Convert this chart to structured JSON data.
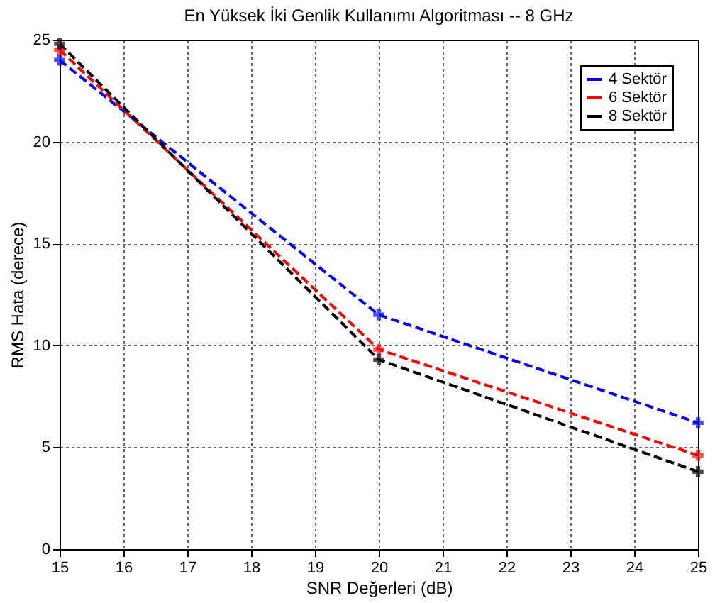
{
  "chart_data": {
    "type": "line",
    "title": "En Yüksek İki Genlik Kullanımı Algoritması -- 8 GHz",
    "xlabel": "SNR Değerleri (dB)",
    "ylabel": "RMS Hata (derece)",
    "x": [
      15,
      20,
      25
    ],
    "series": [
      {
        "name": "4 Sektör",
        "color": "#0000ff",
        "values": [
          24,
          11.5,
          6.2
        ]
      },
      {
        "name": "6 Sektör",
        "color": "#ff0000",
        "values": [
          24.5,
          9.8,
          4.6
        ]
      },
      {
        "name": "8 Sektör",
        "color": "#000000",
        "values": [
          24.8,
          9.3,
          3.8
        ]
      }
    ],
    "xlim": [
      15,
      25
    ],
    "ylim": [
      0,
      25
    ],
    "xticks": [
      15,
      16,
      17,
      18,
      19,
      20,
      21,
      22,
      23,
      24,
      25
    ],
    "yticks": [
      0,
      5,
      10,
      15,
      20,
      25
    ],
    "grid": true,
    "legend": "top right",
    "marker": "cross",
    "line_style": "dashed"
  }
}
